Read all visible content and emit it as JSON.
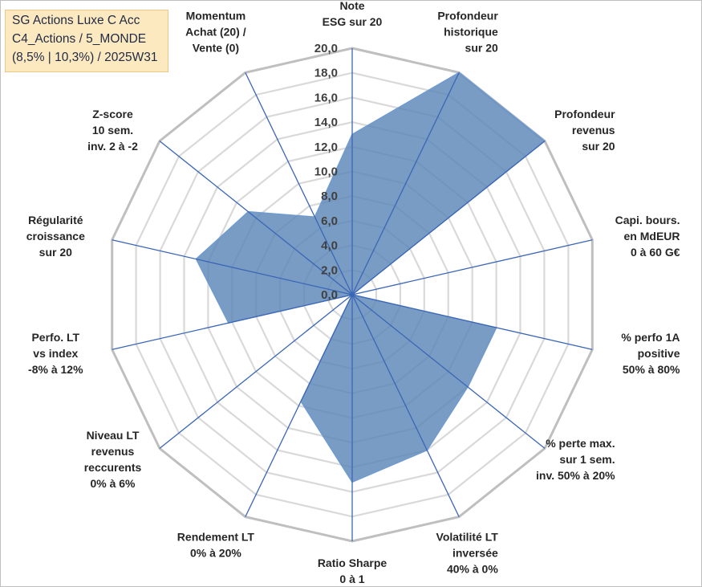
{
  "title": {
    "line1": "SG Actions Luxe C Acc",
    "line2": "C4_Actions / 5_MONDE",
    "line3": "(8,5% | 10,3%) / 2025W31"
  },
  "colors": {
    "fill": "#5b86b8",
    "stroke": "#6f9bd0",
    "spoke": "#3b66b5",
    "grid_outer": "#bfbfbf",
    "grid_inner": "#d9d9d9"
  },
  "chart_data": {
    "type": "radar",
    "rmin": 0,
    "rmax": 20,
    "tick_step": 2,
    "tick_labels": [
      "0,0",
      "2,0",
      "4,0",
      "6,0",
      "8,0",
      "10,0",
      "12,0",
      "14,0",
      "16,0",
      "18,0",
      "20,0"
    ],
    "axes": [
      {
        "label": [
          "Note",
          "ESG sur 20"
        ],
        "value": 13.0
      },
      {
        "label": [
          "Profondeur",
          "historique",
          "sur 20"
        ],
        "value": 20.0
      },
      {
        "label": [
          "Profondeur",
          "revenus",
          "sur 20"
        ],
        "value": 20.0
      },
      {
        "label": [
          "Capi. bours.",
          "en MdEUR",
          "0 à 60 G€"
        ],
        "value": 0.0
      },
      {
        "label": [
          "% perfo 1A",
          "positive",
          "50% à 80%"
        ],
        "value": 12.0
      },
      {
        "label": [
          "% perte max.",
          "sur 1 sem.",
          "inv. 50% à 20%"
        ],
        "value": 12.0
      },
      {
        "label": [
          "Volatilité LT",
          "inversée",
          "40% à 0%"
        ],
        "value": 14.0
      },
      {
        "label": [
          "Ratio Sharpe",
          "0 à 1"
        ],
        "value": 15.2
      },
      {
        "label": [
          "Rendement LT",
          "0% à 20%"
        ],
        "value": 9.6
      },
      {
        "label": [
          "Niveau LT",
          "revenus",
          "reccurents",
          "0% à 6%"
        ],
        "value": 0.0
      },
      {
        "label": [
          "Perfo. LT",
          "vs index",
          "-8% à 12%"
        ],
        "value": 10.3
      },
      {
        "label": [
          "Régularité",
          "croissance",
          "sur 20"
        ],
        "value": 13.0
      },
      {
        "label": [
          "Z-score",
          "10 sem.",
          "inv. 2 à -2"
        ],
        "value": 10.8
      },
      {
        "label": [
          "Momentum",
          "Achat (20) /",
          "Vente (0)"
        ],
        "value": 7.0
      }
    ]
  }
}
